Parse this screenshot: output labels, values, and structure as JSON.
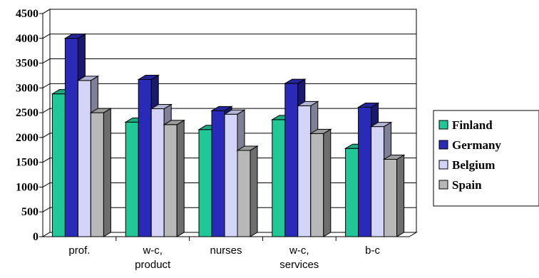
{
  "chart_data": {
    "type": "bar",
    "categories": [
      [
        "prof."
      ],
      [
        "w-c,",
        "product"
      ],
      [
        "nurses"
      ],
      [
        "w-c,",
        "services"
      ],
      [
        "b-c"
      ]
    ],
    "series": [
      {
        "name": "Finland",
        "values": [
          2880,
          2310,
          2160,
          2360,
          1780
        ],
        "color": "#1fc896"
      },
      {
        "name": "Germany",
        "values": [
          4000,
          3170,
          2540,
          3090,
          2610
        ],
        "color": "#2a2ab8"
      },
      {
        "name": "Belgium",
        "values": [
          3150,
          2580,
          2470,
          2640,
          2220
        ],
        "color": "#d4d4f8"
      },
      {
        "name": "Spain",
        "values": [
          2500,
          2260,
          1740,
          2080,
          1560
        ],
        "color": "#b8b8b8"
      }
    ],
    "yticks": [
      0,
      500,
      1000,
      1500,
      2000,
      2500,
      3000,
      3500,
      4000,
      4500
    ],
    "ylim": [
      0,
      4500
    ],
    "grid": true,
    "legend_position": "right",
    "title": "",
    "xlabel": "",
    "ylabel": ""
  }
}
